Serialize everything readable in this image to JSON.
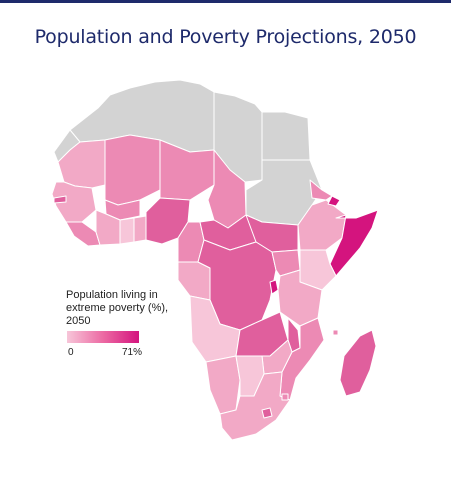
{
  "title": "Population and Poverty Projections, 2050",
  "legend": {
    "title": "Population living in extreme poverty (%), 2050",
    "min_label": "0",
    "max_label": "71%",
    "scale_colors": [
      "#f7c6d9",
      "#ec6aa3",
      "#d4147e"
    ]
  },
  "colors": {
    "no_data": "#d3d3d3",
    "very_light": "#f7c6d9",
    "light": "#f2a9c6",
    "medium": "#ec8ab4",
    "dark": "#e05f9d",
    "darkest": "#d4147e",
    "accent_title": "#1e2a6b"
  }
}
